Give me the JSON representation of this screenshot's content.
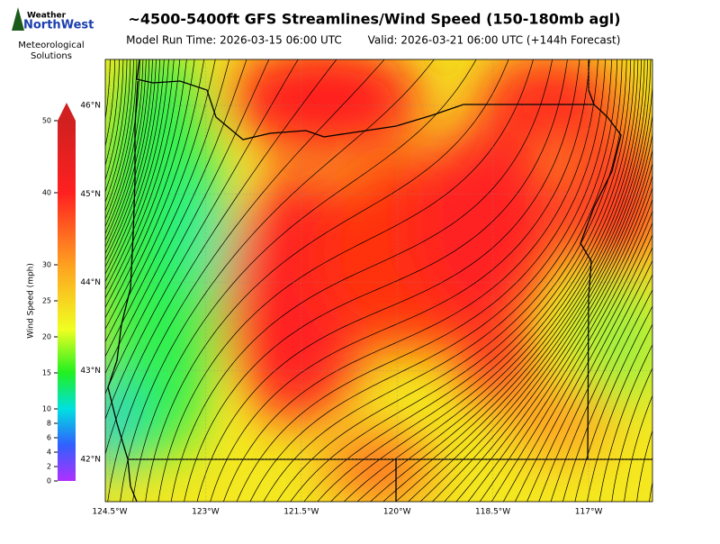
{
  "header": {
    "logo_top": "Weather",
    "logo_main": "NorthWest",
    "org_line1": "Meteorological",
    "org_line2": "Solutions",
    "title": "~4500-5400ft GFS Streamlines/Wind Speed (150-180mb agl)",
    "model_run": "Model Run Time: 2026-03-15 06:00 UTC",
    "valid": "Valid: 2026-03-21 06:00 UTC  (+144h Forecast)"
  },
  "colorbar": {
    "label": "Wind Speed (mph)",
    "lim": [
      0,
      50
    ],
    "ticks": [
      0,
      2,
      4,
      6,
      8,
      10,
      15,
      20,
      25,
      30,
      40,
      50
    ]
  },
  "map": {
    "xlim": [
      -124.57,
      -116.0
    ],
    "ylim": [
      41.52,
      46.52
    ],
    "xticks": [
      {
        "value": -124.5,
        "label": "124.5°W"
      },
      {
        "value": -123,
        "label": "123°W"
      },
      {
        "value": -121.5,
        "label": "121.5°W"
      },
      {
        "value": -120,
        "label": "120°W"
      },
      {
        "value": -118.5,
        "label": "118.5°W"
      },
      {
        "value": -117,
        "label": "117°W"
      }
    ],
    "yticks": [
      {
        "value": 46,
        "label": "46°N"
      },
      {
        "value": 45,
        "label": "45°N"
      },
      {
        "value": 44,
        "label": "44°N"
      },
      {
        "value": 43,
        "label": "43°N"
      },
      {
        "value": 42,
        "label": "42°N"
      }
    ]
  }
}
